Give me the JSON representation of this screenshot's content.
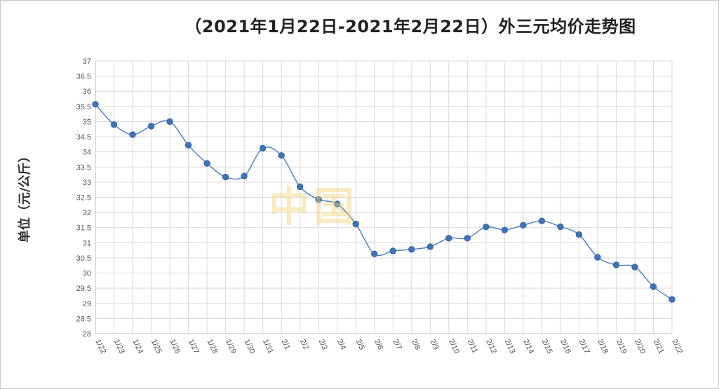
{
  "title": "（2021年1月22日-2021年2月22日）外三元均价走势图",
  "watermark": "中国",
  "colors": {
    "line": "#4a7ec1",
    "marker": "#3f73b8",
    "grid": "#d9d9d9"
  },
  "chart_data": {
    "type": "line",
    "title": "（2021年1月22日-2021年2月22日）外三元均价走势图",
    "ylabel": "单位（元/公斤）",
    "xlabel": "",
    "ylim": [
      28,
      37
    ],
    "ystep": 0.5,
    "grid": true,
    "categories": [
      "1/22",
      "1/23",
      "1/24",
      "1/25",
      "1/26",
      "1/27",
      "1/28",
      "1/29",
      "1/30",
      "1/31",
      "2/1",
      "2/2",
      "2/3",
      "2/4",
      "2/5",
      "2/6",
      "2/7",
      "2/8",
      "2/9",
      "2/10",
      "2/11",
      "2/12",
      "2/13",
      "2/14",
      "2/15",
      "2/16",
      "2/17",
      "2/18",
      "2/19",
      "2/20",
      "2/21",
      "2/22"
    ],
    "series": [
      {
        "values": [
          35.57,
          34.9,
          34.57,
          34.85,
          35.0,
          34.22,
          33.62,
          33.17,
          33.2,
          34.12,
          33.88,
          32.85,
          32.43,
          32.28,
          31.62,
          30.63,
          30.73,
          30.78,
          30.87,
          31.15,
          31.15,
          31.52,
          31.42,
          31.58,
          31.72,
          31.53,
          31.27,
          30.52,
          30.27,
          30.2,
          29.55,
          29.13
        ]
      }
    ]
  }
}
